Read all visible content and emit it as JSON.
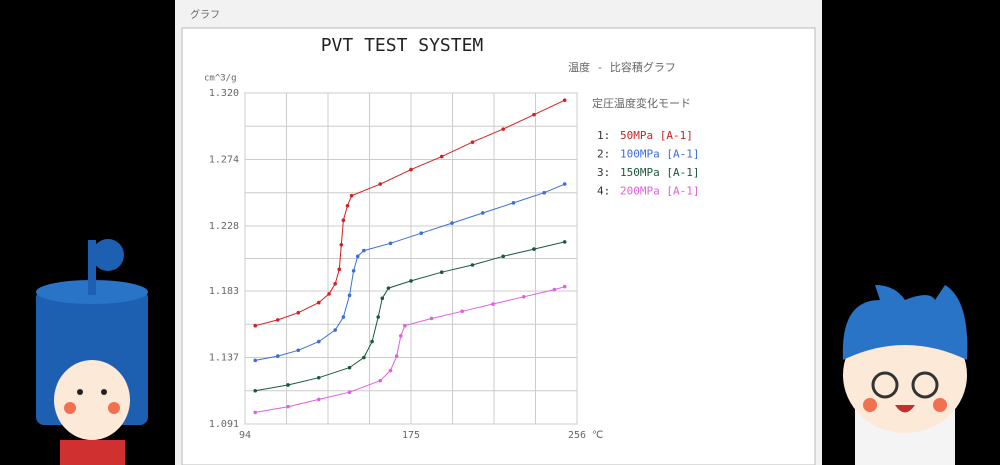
{
  "window_title": "グラフ",
  "chart_data": {
    "type": "line",
    "title": "PVT TEST SYSTEM",
    "subtitle": "温度 - 比容積グラフ",
    "y_label": "cm^3/g",
    "x_label": "℃",
    "legend_title": "定圧温度変化モード",
    "legend_numbers": [
      "1:",
      "2:",
      "3:",
      "4:"
    ],
    "xlim": [
      94,
      256
    ],
    "xticks": [
      94,
      175,
      256
    ],
    "ylim": [
      1.091,
      1.32
    ],
    "yticks": [
      1.091,
      1.137,
      1.183,
      1.228,
      1.274,
      {
        "value": 1.32,
        "label": "1.320"
      }
    ],
    "grid": true,
    "series": [
      {
        "name": "50MPa [A-1]",
        "color": "#d42020",
        "x": [
          99,
          110,
          120,
          130,
          135,
          138,
          140,
          141,
          142,
          144,
          146,
          160,
          175,
          190,
          205,
          220,
          235,
          250
        ],
        "values": [
          1.159,
          1.163,
          1.168,
          1.175,
          1.181,
          1.188,
          1.198,
          1.215,
          1.232,
          1.242,
          1.249,
          1.257,
          1.267,
          1.276,
          1.286,
          1.295,
          1.305,
          1.315
        ]
      },
      {
        "name": "100MPa [A-1]",
        "color": "#3a6fd8",
        "x": [
          99,
          110,
          120,
          130,
          138,
          142,
          145,
          147,
          149,
          152,
          165,
          180,
          195,
          210,
          225,
          240,
          250
        ],
        "values": [
          1.135,
          1.138,
          1.142,
          1.148,
          1.156,
          1.165,
          1.18,
          1.197,
          1.207,
          1.211,
          1.216,
          1.223,
          1.23,
          1.237,
          1.244,
          1.251,
          1.257
        ]
      },
      {
        "name": "150MPa [A-1]",
        "color": "#1a5a3a",
        "x": [
          99,
          115,
          130,
          145,
          152,
          156,
          159,
          161,
          164,
          175,
          190,
          205,
          220,
          235,
          250
        ],
        "values": [
          1.114,
          1.118,
          1.123,
          1.13,
          1.137,
          1.148,
          1.165,
          1.178,
          1.185,
          1.19,
          1.196,
          1.201,
          1.207,
          1.212,
          1.217
        ]
      },
      {
        "name": "200MPa [A-1]",
        "color": "#e060e0",
        "x": [
          99,
          115,
          130,
          145,
          160,
          165,
          168,
          170,
          172,
          185,
          200,
          215,
          230,
          245,
          250
        ],
        "values": [
          1.099,
          1.103,
          1.108,
          1.113,
          1.121,
          1.128,
          1.138,
          1.152,
          1.159,
          1.164,
          1.169,
          1.174,
          1.179,
          1.184,
          1.186
        ]
      }
    ]
  }
}
